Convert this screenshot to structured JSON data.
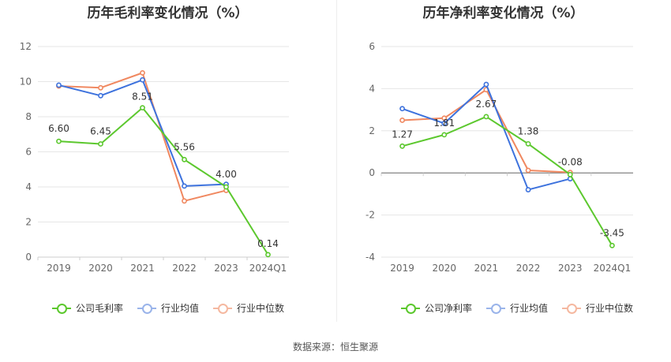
{
  "source_note": "数据来源：恒生聚源",
  "chart_data": [
    {
      "type": "line",
      "title": "历年毛利率变化情况（%）",
      "categories": [
        "2019",
        "2020",
        "2021",
        "2022",
        "2023",
        "2024Q1"
      ],
      "ylim": [
        0,
        12
      ],
      "yticks": [
        "0",
        "2",
        "4",
        "6",
        "8",
        "10",
        "12"
      ],
      "grid": true,
      "legend_position": "bottom",
      "series": [
        {
          "name": "公司毛利率",
          "color": "#5cc82e",
          "values": [
            6.6,
            6.45,
            8.51,
            5.56,
            4.0,
            0.14
          ],
          "labels": [
            "6.60",
            "6.45",
            "8.51",
            "5.56",
            "4.00",
            "0.14"
          ]
        },
        {
          "name": "行业均值",
          "color": "#3d72dd",
          "values": [
            9.8,
            9.2,
            10.1,
            4.05,
            4.15,
            null
          ],
          "labels": []
        },
        {
          "name": "行业中位数",
          "color": "#f08860",
          "values": [
            9.75,
            9.65,
            10.5,
            3.2,
            3.8,
            null
          ],
          "labels": []
        }
      ]
    },
    {
      "type": "line",
      "title": "历年净利率变化情况（%）",
      "categories": [
        "2019",
        "2020",
        "2021",
        "2022",
        "2023",
        "2024Q1"
      ],
      "ylim": [
        -4,
        6
      ],
      "yticks": [
        "-4",
        "-2",
        "0",
        "2",
        "4",
        "6"
      ],
      "grid": true,
      "legend_position": "bottom",
      "series": [
        {
          "name": "公司净利率",
          "color": "#5cc82e",
          "values": [
            1.27,
            1.81,
            2.67,
            1.38,
            -0.08,
            -3.45
          ],
          "labels": [
            "1.27",
            "1.81",
            "2.67",
            "1.38",
            "-0.08",
            "-3.45"
          ]
        },
        {
          "name": "行业均值",
          "color": "#3d72dd",
          "values": [
            3.05,
            2.35,
            4.2,
            -0.8,
            -0.28,
            null
          ],
          "labels": []
        },
        {
          "name": "行业中位数",
          "color": "#f08860",
          "values": [
            2.5,
            2.6,
            3.95,
            0.12,
            0.02,
            null
          ],
          "labels": []
        }
      ]
    }
  ]
}
